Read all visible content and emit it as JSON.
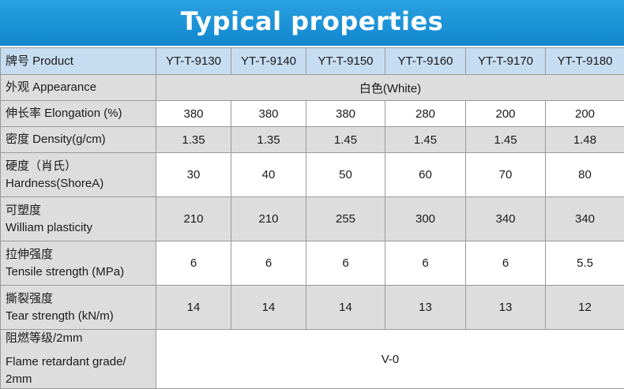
{
  "banner": {
    "title": "Typical properties"
  },
  "header": {
    "label": "牌号 Product",
    "models": [
      "YT-T-9130",
      "YT-T-9140",
      "YT-T-9150",
      "YT-T-9160",
      "YT-T-9170",
      "YT-T-9180"
    ]
  },
  "rows": [
    {
      "label_cn": "外观 Appearance",
      "label_en": "",
      "span_value": "白色(White)",
      "values": []
    },
    {
      "label_cn": "伸长率  Elongation (%)",
      "label_en": "",
      "values": [
        "380",
        "380",
        "380",
        "280",
        "200",
        "200"
      ]
    },
    {
      "label_cn": "密度  Density(g/cm)",
      "label_en": "",
      "values": [
        "1.35",
        "1.35",
        "1.45",
        "1.45",
        "1.45",
        "1.48"
      ]
    },
    {
      "label_cn": "硬度（肖氏）",
      "label_en": "Hardness(ShoreA)",
      "values": [
        "30",
        "40",
        "50",
        "60",
        "70",
        "80"
      ]
    },
    {
      "label_cn": "可塑度",
      "label_en": "William plasticity",
      "values": [
        "210",
        "210",
        "255",
        "300",
        "340",
        "340"
      ]
    },
    {
      "label_cn": "拉伸强度",
      "label_en": "Tensile strength (MPa)",
      "values": [
        "6",
        "6",
        "6",
        "6",
        "6",
        "5.5"
      ]
    },
    {
      "label_cn": "撕裂强度",
      "label_en": "Tear strength (kN/m)",
      "values": [
        "14",
        "14",
        "14",
        "13",
        "13",
        "12"
      ]
    },
    {
      "label_cn": "阻燃等级/2mm",
      "label_en": "Flame retardant grade/ 2mm",
      "span_value": "V-0",
      "values": []
    }
  ]
}
